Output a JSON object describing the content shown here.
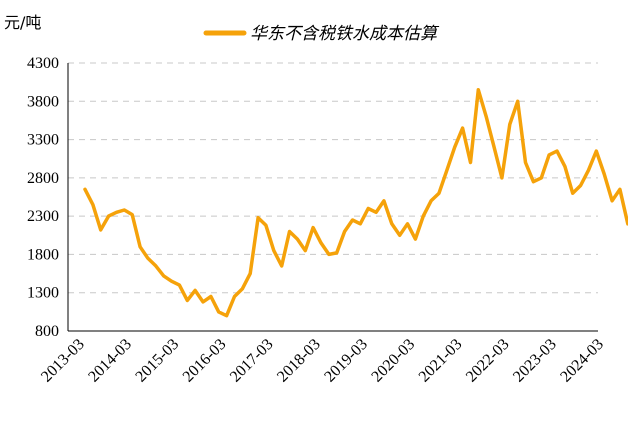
{
  "chart_data": {
    "type": "line",
    "title": "",
    "ylabel": "元/吨",
    "xlabel": "",
    "ylim": [
      800,
      4300
    ],
    "yticks": [
      800,
      1300,
      1800,
      2300,
      2800,
      3300,
      3800,
      4300
    ],
    "xticks": [
      "2013-03",
      "2014-03",
      "2015-03",
      "2016-03",
      "2017-03",
      "2018-03",
      "2019-03",
      "2020-03",
      "2021-03",
      "2022-03",
      "2023-03",
      "2024-03"
    ],
    "grid": true,
    "legend_position": "top",
    "series": [
      {
        "name": "华东不含税铁水成本估算",
        "color": "#f5a20a",
        "x": [
          "2013-03",
          "2013-05",
          "2013-07",
          "2013-09",
          "2013-11",
          "2014-01",
          "2014-03",
          "2014-05",
          "2014-07",
          "2014-09",
          "2014-11",
          "2015-01",
          "2015-03",
          "2015-05",
          "2015-07",
          "2015-09",
          "2015-11",
          "2016-01",
          "2016-03",
          "2016-05",
          "2016-07",
          "2016-09",
          "2016-11",
          "2017-01",
          "2017-03",
          "2017-05",
          "2017-07",
          "2017-09",
          "2017-11",
          "2018-01",
          "2018-03",
          "2018-05",
          "2018-07",
          "2018-09",
          "2018-11",
          "2019-01",
          "2019-03",
          "2019-05",
          "2019-07",
          "2019-09",
          "2019-11",
          "2020-01",
          "2020-03",
          "2020-05",
          "2020-07",
          "2020-09",
          "2020-11",
          "2021-01",
          "2021-03",
          "2021-05",
          "2021-07",
          "2021-09",
          "2021-11",
          "2022-01",
          "2022-03",
          "2022-05",
          "2022-07",
          "2022-09",
          "2022-11",
          "2023-01",
          "2023-03",
          "2023-05",
          "2023-07",
          "2023-09",
          "2023-11",
          "2024-01",
          "2024-03",
          "2024-05",
          "2024-07",
          "2024-09"
        ],
        "values": [
          2650,
          2450,
          2120,
          2300,
          2350,
          2380,
          2320,
          1900,
          1750,
          1650,
          1520,
          1450,
          1400,
          1200,
          1330,
          1180,
          1250,
          1050,
          1000,
          1250,
          1350,
          1550,
          2280,
          2180,
          1850,
          1650,
          2100,
          2000,
          1850,
          2150,
          1950,
          1800,
          1820,
          2100,
          2250,
          2200,
          2400,
          2350,
          2500,
          2200,
          2050,
          2200,
          2000,
          2300,
          2500,
          2600,
          2900,
          3200,
          3450,
          3000,
          3950,
          3600,
          3200,
          2800,
          3500,
          3800,
          3000,
          2750,
          2800,
          3100,
          3150,
          2950,
          2600,
          2700,
          2900,
          3150,
          2850,
          2500,
          2650,
          2200
        ]
      }
    ]
  }
}
